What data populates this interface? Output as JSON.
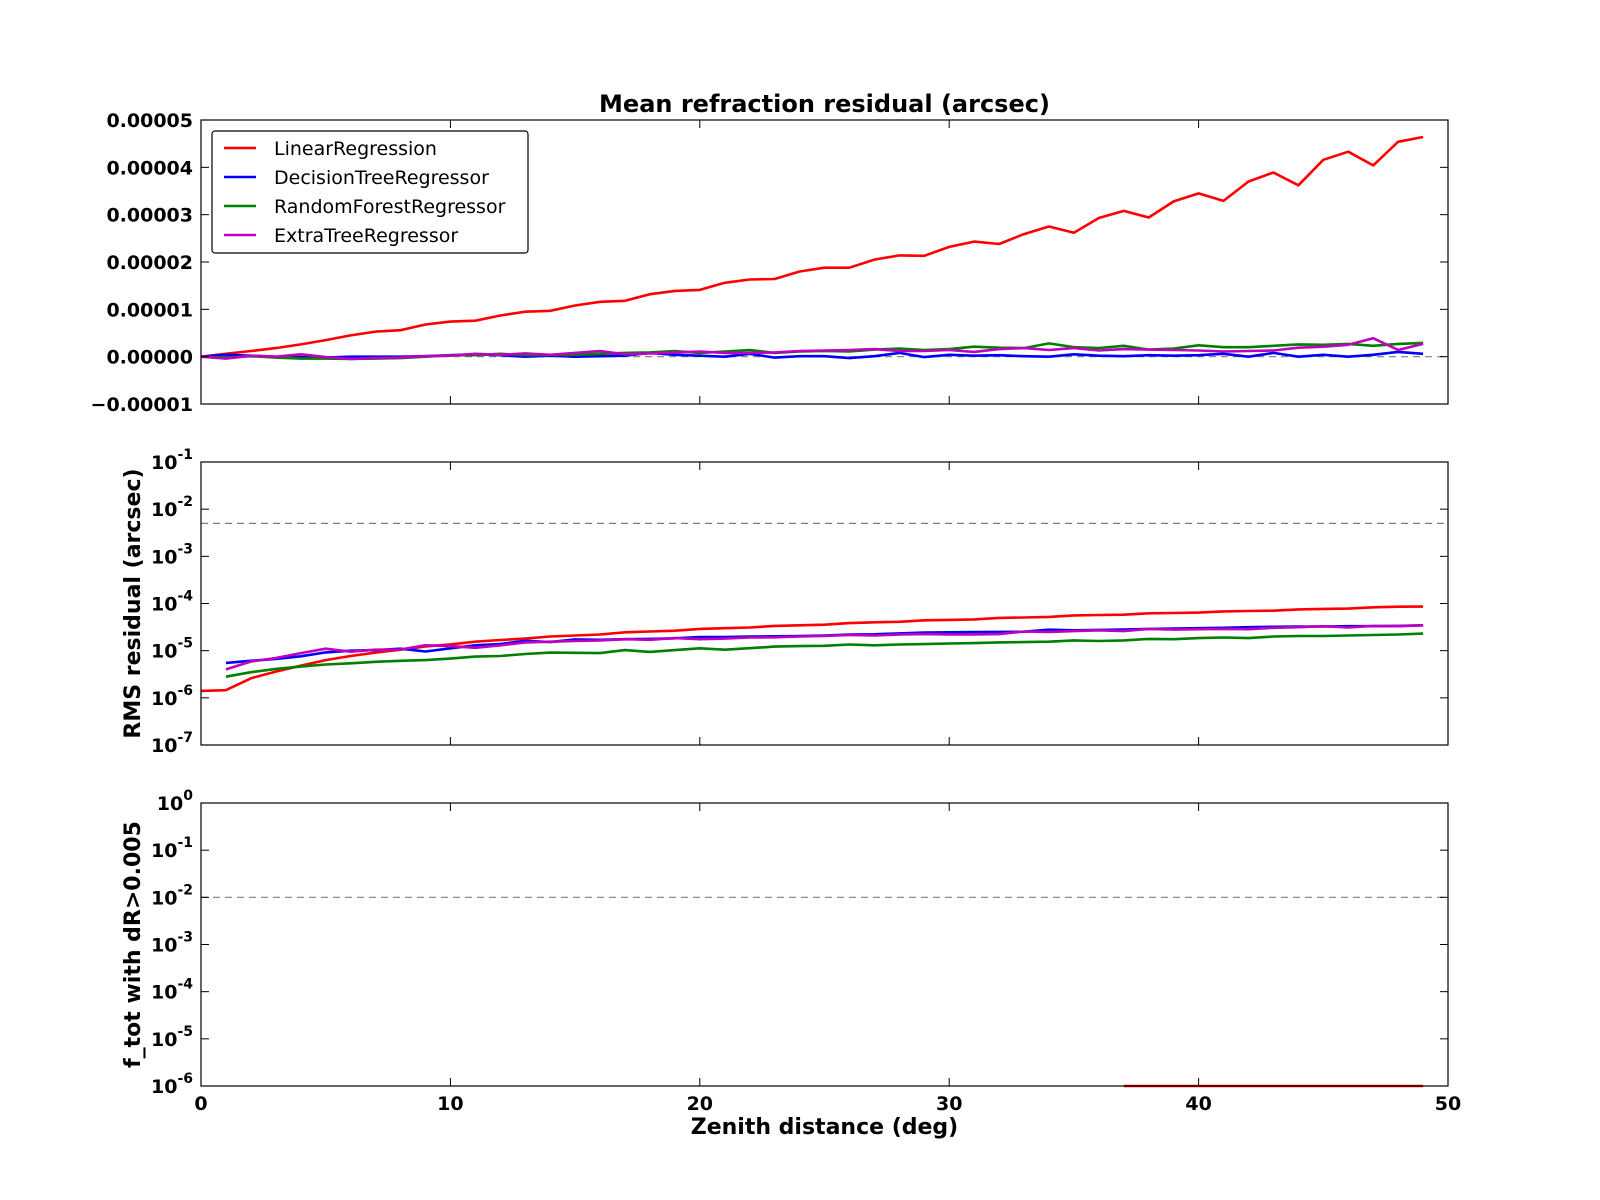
{
  "chart_data": [
    {
      "type": "line",
      "title": "Mean refraction residual (arcsec)",
      "xlabel": "",
      "ylabel": "",
      "xlim": [
        0,
        50
      ],
      "ylim": [
        -1e-05,
        5e-05
      ],
      "yscale": "linear",
      "yticks": [
        -1e-05,
        0,
        1e-05,
        2e-05,
        3e-05,
        4e-05,
        5e-05
      ],
      "ytick_labels": [
        "−0.00001",
        "0.00000",
        "0.00001",
        "0.00002",
        "0.00003",
        "0.00004",
        "0.00005"
      ],
      "reference_line": 0,
      "legend": {
        "placement": "top-left"
      },
      "x": [
        0,
        1,
        2,
        3,
        4,
        5,
        6,
        7,
        8,
        9,
        10,
        11,
        12,
        13,
        14,
        15,
        16,
        17,
        18,
        19,
        20,
        21,
        22,
        23,
        24,
        25,
        26,
        27,
        28,
        29,
        30,
        31,
        32,
        33,
        34,
        35,
        36,
        37,
        38,
        39,
        40,
        41,
        42,
        43,
        44,
        45,
        46,
        47,
        48,
        49
      ],
      "series": [
        {
          "name": "LinearRegression",
          "color": "#ff0000",
          "values": [
            0,
            6e-07,
            1.2e-06,
            1.8e-06,
            2.6e-06,
            3.5e-06,
            4.5e-06,
            5.3e-06,
            5.6e-06,
            6.8e-06,
            7.4e-06,
            7.6e-06,
            8.7e-06,
            9.5e-06,
            9.7e-06,
            1.08e-05,
            1.16e-05,
            1.18e-05,
            1.32e-05,
            1.39e-05,
            1.41e-05,
            1.56e-05,
            1.63e-05,
            1.64e-05,
            1.8e-05,
            1.88e-05,
            1.88e-05,
            2.05e-05,
            2.14e-05,
            2.13e-05,
            2.32e-05,
            2.43e-05,
            2.38e-05,
            2.59e-05,
            2.75e-05,
            2.62e-05,
            2.93e-05,
            3.08e-05,
            2.94e-05,
            3.28e-05,
            3.45e-05,
            3.29e-05,
            3.7e-05,
            3.89e-05,
            3.62e-05,
            4.16e-05,
            4.33e-05,
            4.04e-05,
            4.54e-05,
            4.64e-05
          ]
        },
        {
          "name": "DecisionTreeRegressor",
          "color": "#0000ff",
          "values": [
            0,
            4e-07,
            2e-07,
            0,
            -1e-07,
            -2e-07,
            0,
            0,
            0,
            1e-07,
            3e-07,
            5e-07,
            3e-07,
            0,
            2e-07,
            0,
            1e-07,
            2e-07,
            8e-07,
            4e-07,
            2e-07,
            0,
            6e-07,
            -2e-07,
            1e-07,
            1e-07,
            -3e-07,
            1e-07,
            8e-07,
            -1e-07,
            4e-07,
            2e-07,
            3e-07,
            1e-07,
            0,
            5e-07,
            2e-07,
            1e-07,
            3e-07,
            2e-07,
            3e-07,
            6e-07,
            0,
            8e-07,
            0,
            4e-07,
            0,
            4e-07,
            1e-06,
            6e-07
          ]
        },
        {
          "name": "RandomForestRegressor",
          "color": "#008000",
          "values": [
            0,
            -2e-07,
            1e-07,
            -2e-07,
            -4e-07,
            -4e-07,
            -5e-07,
            -4e-07,
            -3e-07,
            0,
            3e-07,
            3e-07,
            6e-07,
            3e-07,
            4e-07,
            4e-07,
            6e-07,
            8e-07,
            9e-07,
            1.2e-06,
            8e-07,
            1.1e-06,
            1.4e-06,
            8e-07,
            1.1e-06,
            1.2e-06,
            1.1e-06,
            1.5e-06,
            1.7e-06,
            1.4e-06,
            1.6e-06,
            2.1e-06,
            1.9e-06,
            1.8e-06,
            2.8e-06,
            2e-06,
            1.8e-06,
            2.3e-06,
            1.5e-06,
            1.7e-06,
            2.4e-06,
            2e-06,
            2e-06,
            2.3e-06,
            2.6e-06,
            2.5e-06,
            2.7e-06,
            2.3e-06,
            2.7e-06,
            2.9e-06
          ]
        },
        {
          "name": "ExtraTreeRegressor",
          "color": "#bf00bf",
          "values": [
            0,
            -4e-07,
            2e-07,
            0,
            5e-07,
            -1e-07,
            -5e-07,
            -3e-07,
            -2e-07,
            1e-07,
            2e-07,
            6e-07,
            4e-07,
            7e-07,
            4e-07,
            8e-07,
            1.2e-06,
            5e-07,
            7e-07,
            9e-07,
            1.1e-06,
            8e-07,
            8e-07,
            9e-07,
            1.2e-06,
            1.3e-06,
            1.4e-06,
            1.6e-06,
            1.2e-06,
            1.2e-06,
            1.4e-06,
            1e-06,
            1.6e-06,
            1.8e-06,
            1.4e-06,
            1.8e-06,
            1.3e-06,
            1.6e-06,
            1.5e-06,
            1.4e-06,
            1.3e-06,
            1.1e-06,
            1.2e-06,
            1.3e-06,
            1.9e-06,
            2.1e-06,
            2.5e-06,
            3.9e-06,
            1.4e-06,
            2.7e-06
          ]
        }
      ]
    },
    {
      "type": "line",
      "title": "",
      "xlabel": "",
      "ylabel": "RMS residual (arcsec)",
      "xlim": [
        0,
        50
      ],
      "ylim": [
        1e-07,
        0.1
      ],
      "yscale": "log",
      "yticks": [
        {
          "base": "10",
          "exp": "-7"
        },
        {
          "base": "10",
          "exp": "-6"
        },
        {
          "base": "10",
          "exp": "-5"
        },
        {
          "base": "10",
          "exp": "-4"
        },
        {
          "base": "10",
          "exp": "-3"
        },
        {
          "base": "10",
          "exp": "-2"
        },
        {
          "base": "10",
          "exp": "-1"
        }
      ],
      "reference_line": 0.005,
      "x": [
        0,
        1,
        2,
        3,
        4,
        5,
        6,
        7,
        8,
        9,
        10,
        11,
        12,
        13,
        14,
        15,
        16,
        17,
        18,
        19,
        20,
        21,
        22,
        23,
        24,
        25,
        26,
        27,
        28,
        29,
        30,
        31,
        32,
        33,
        34,
        35,
        36,
        37,
        38,
        39,
        40,
        41,
        42,
        43,
        44,
        45,
        46,
        47,
        48,
        49
      ],
      "series": [
        {
          "name": "LinearRegression",
          "color": "#ff0000",
          "values": [
            1.4e-06,
            1.45e-06,
            2.6e-06,
            3.6e-06,
            4.8e-06,
            6.3e-06,
            7.7e-06,
            9.1e-06,
            1.05e-05,
            1.23e-05,
            1.36e-05,
            1.55e-05,
            1.68e-05,
            1.8e-05,
            2e-05,
            2.1e-05,
            2.2e-05,
            2.45e-05,
            2.55e-05,
            2.65e-05,
            2.9e-05,
            3e-05,
            3.1e-05,
            3.35e-05,
            3.45e-05,
            3.55e-05,
            3.85e-05,
            4e-05,
            4.1e-05,
            4.4e-05,
            4.5e-05,
            4.6e-05,
            4.95e-05,
            5.05e-05,
            5.2e-05,
            5.6e-05,
            5.7e-05,
            5.8e-05,
            6.2e-05,
            6.3e-05,
            6.4e-05,
            6.8e-05,
            6.95e-05,
            7.05e-05,
            7.5e-05,
            7.7e-05,
            7.8e-05,
            8.3e-05,
            8.55e-05,
            8.6e-05
          ]
        },
        {
          "name": "DecisionTreeRegressor",
          "color": "#0000ff",
          "values": [
            null,
            5.5e-06,
            6.1e-06,
            6.7e-06,
            7.6e-06,
            9.2e-06,
            1e-05,
            1.03e-05,
            1.1e-05,
            9.6e-06,
            1.12e-05,
            1.3e-05,
            1.38e-05,
            1.62e-05,
            1.52e-05,
            1.73e-05,
            1.7e-05,
            1.75e-05,
            1.78e-05,
            1.83e-05,
            1.95e-05,
            1.94e-05,
            2e-05,
            2.02e-05,
            2.05e-05,
            2.1e-05,
            2.2e-05,
            2.22e-05,
            2.32e-05,
            2.42e-05,
            2.45e-05,
            2.48e-05,
            2.5e-05,
            2.52e-05,
            2.78e-05,
            2.7e-05,
            2.75e-05,
            2.8e-05,
            2.9e-05,
            2.95e-05,
            3e-05,
            3.05e-05,
            3.15e-05,
            3.2e-05,
            3.25e-05,
            3.25e-05,
            3.3e-05,
            3.3e-05,
            3.35e-05,
            3.45e-05
          ]
        },
        {
          "name": "RandomForestRegressor",
          "color": "#008000",
          "values": [
            null,
            2.8e-06,
            3.5e-06,
            4.1e-06,
            4.6e-06,
            5.1e-06,
            5.4e-06,
            5.8e-06,
            6.1e-06,
            6.3e-06,
            6.8e-06,
            7.5e-06,
            7.7e-06,
            8.5e-06,
            9.1e-06,
            9e-06,
            8.9e-06,
            1.03e-05,
            9.4e-06,
            1.03e-05,
            1.12e-05,
            1.05e-05,
            1.13e-05,
            1.22e-05,
            1.25e-05,
            1.27e-05,
            1.35e-05,
            1.3e-05,
            1.35e-05,
            1.38e-05,
            1.42e-05,
            1.45e-05,
            1.5e-05,
            1.52e-05,
            1.55e-05,
            1.65e-05,
            1.6e-05,
            1.65e-05,
            1.78e-05,
            1.75e-05,
            1.85e-05,
            1.9e-05,
            1.85e-05,
            2e-05,
            2.05e-05,
            2.05e-05,
            2.1e-05,
            2.15e-05,
            2.2e-05,
            2.3e-05
          ]
        },
        {
          "name": "ExtraTreeRegressor",
          "color": "#bf00bf",
          "values": [
            null,
            4e-06,
            5.9e-06,
            7e-06,
            8.9e-06,
            1.1e-05,
            9.5e-06,
            1.05e-05,
            1.06e-05,
            1.3e-05,
            1.25e-05,
            1.15e-05,
            1.3e-05,
            1.5e-05,
            1.55e-05,
            1.6e-05,
            1.65e-05,
            1.75e-05,
            1.7e-05,
            1.85e-05,
            1.75e-05,
            1.8e-05,
            1.9e-05,
            1.92e-05,
            2e-05,
            2.05e-05,
            2.15e-05,
            2.1e-05,
            2.2e-05,
            2.25e-05,
            2.2e-05,
            2.2e-05,
            2.25e-05,
            2.55e-05,
            2.5e-05,
            2.6e-05,
            2.7e-05,
            2.6e-05,
            2.9e-05,
            2.8e-05,
            2.85e-05,
            2.9e-05,
            2.85e-05,
            3.05e-05,
            3.15e-05,
            3.3e-05,
            3.1e-05,
            3.35e-05,
            3.3e-05,
            3.45e-05
          ]
        }
      ]
    },
    {
      "type": "line",
      "title": "",
      "xlabel": "Zenith distance (deg)",
      "ylabel": "f_tot with dR>0.005",
      "xlim": [
        0,
        50
      ],
      "ylim": [
        1e-06,
        1
      ],
      "yscale": "log",
      "xticks": [
        "0",
        "10",
        "20",
        "30",
        "40",
        "50"
      ],
      "yticks": [
        {
          "base": "10",
          "exp": "-6"
        },
        {
          "base": "10",
          "exp": "-5"
        },
        {
          "base": "10",
          "exp": "-4"
        },
        {
          "base": "10",
          "exp": "-3"
        },
        {
          "base": "10",
          "exp": "-2"
        },
        {
          "base": "10",
          "exp": "-1"
        },
        {
          "base": "10",
          "exp": "0"
        }
      ],
      "reference_line": 0.01,
      "series": [
        {
          "name": "LinearRegression",
          "color": "#ff0000",
          "x": [
            37,
            49
          ],
          "values": [
            1e-06,
            1e-06
          ]
        }
      ]
    }
  ]
}
